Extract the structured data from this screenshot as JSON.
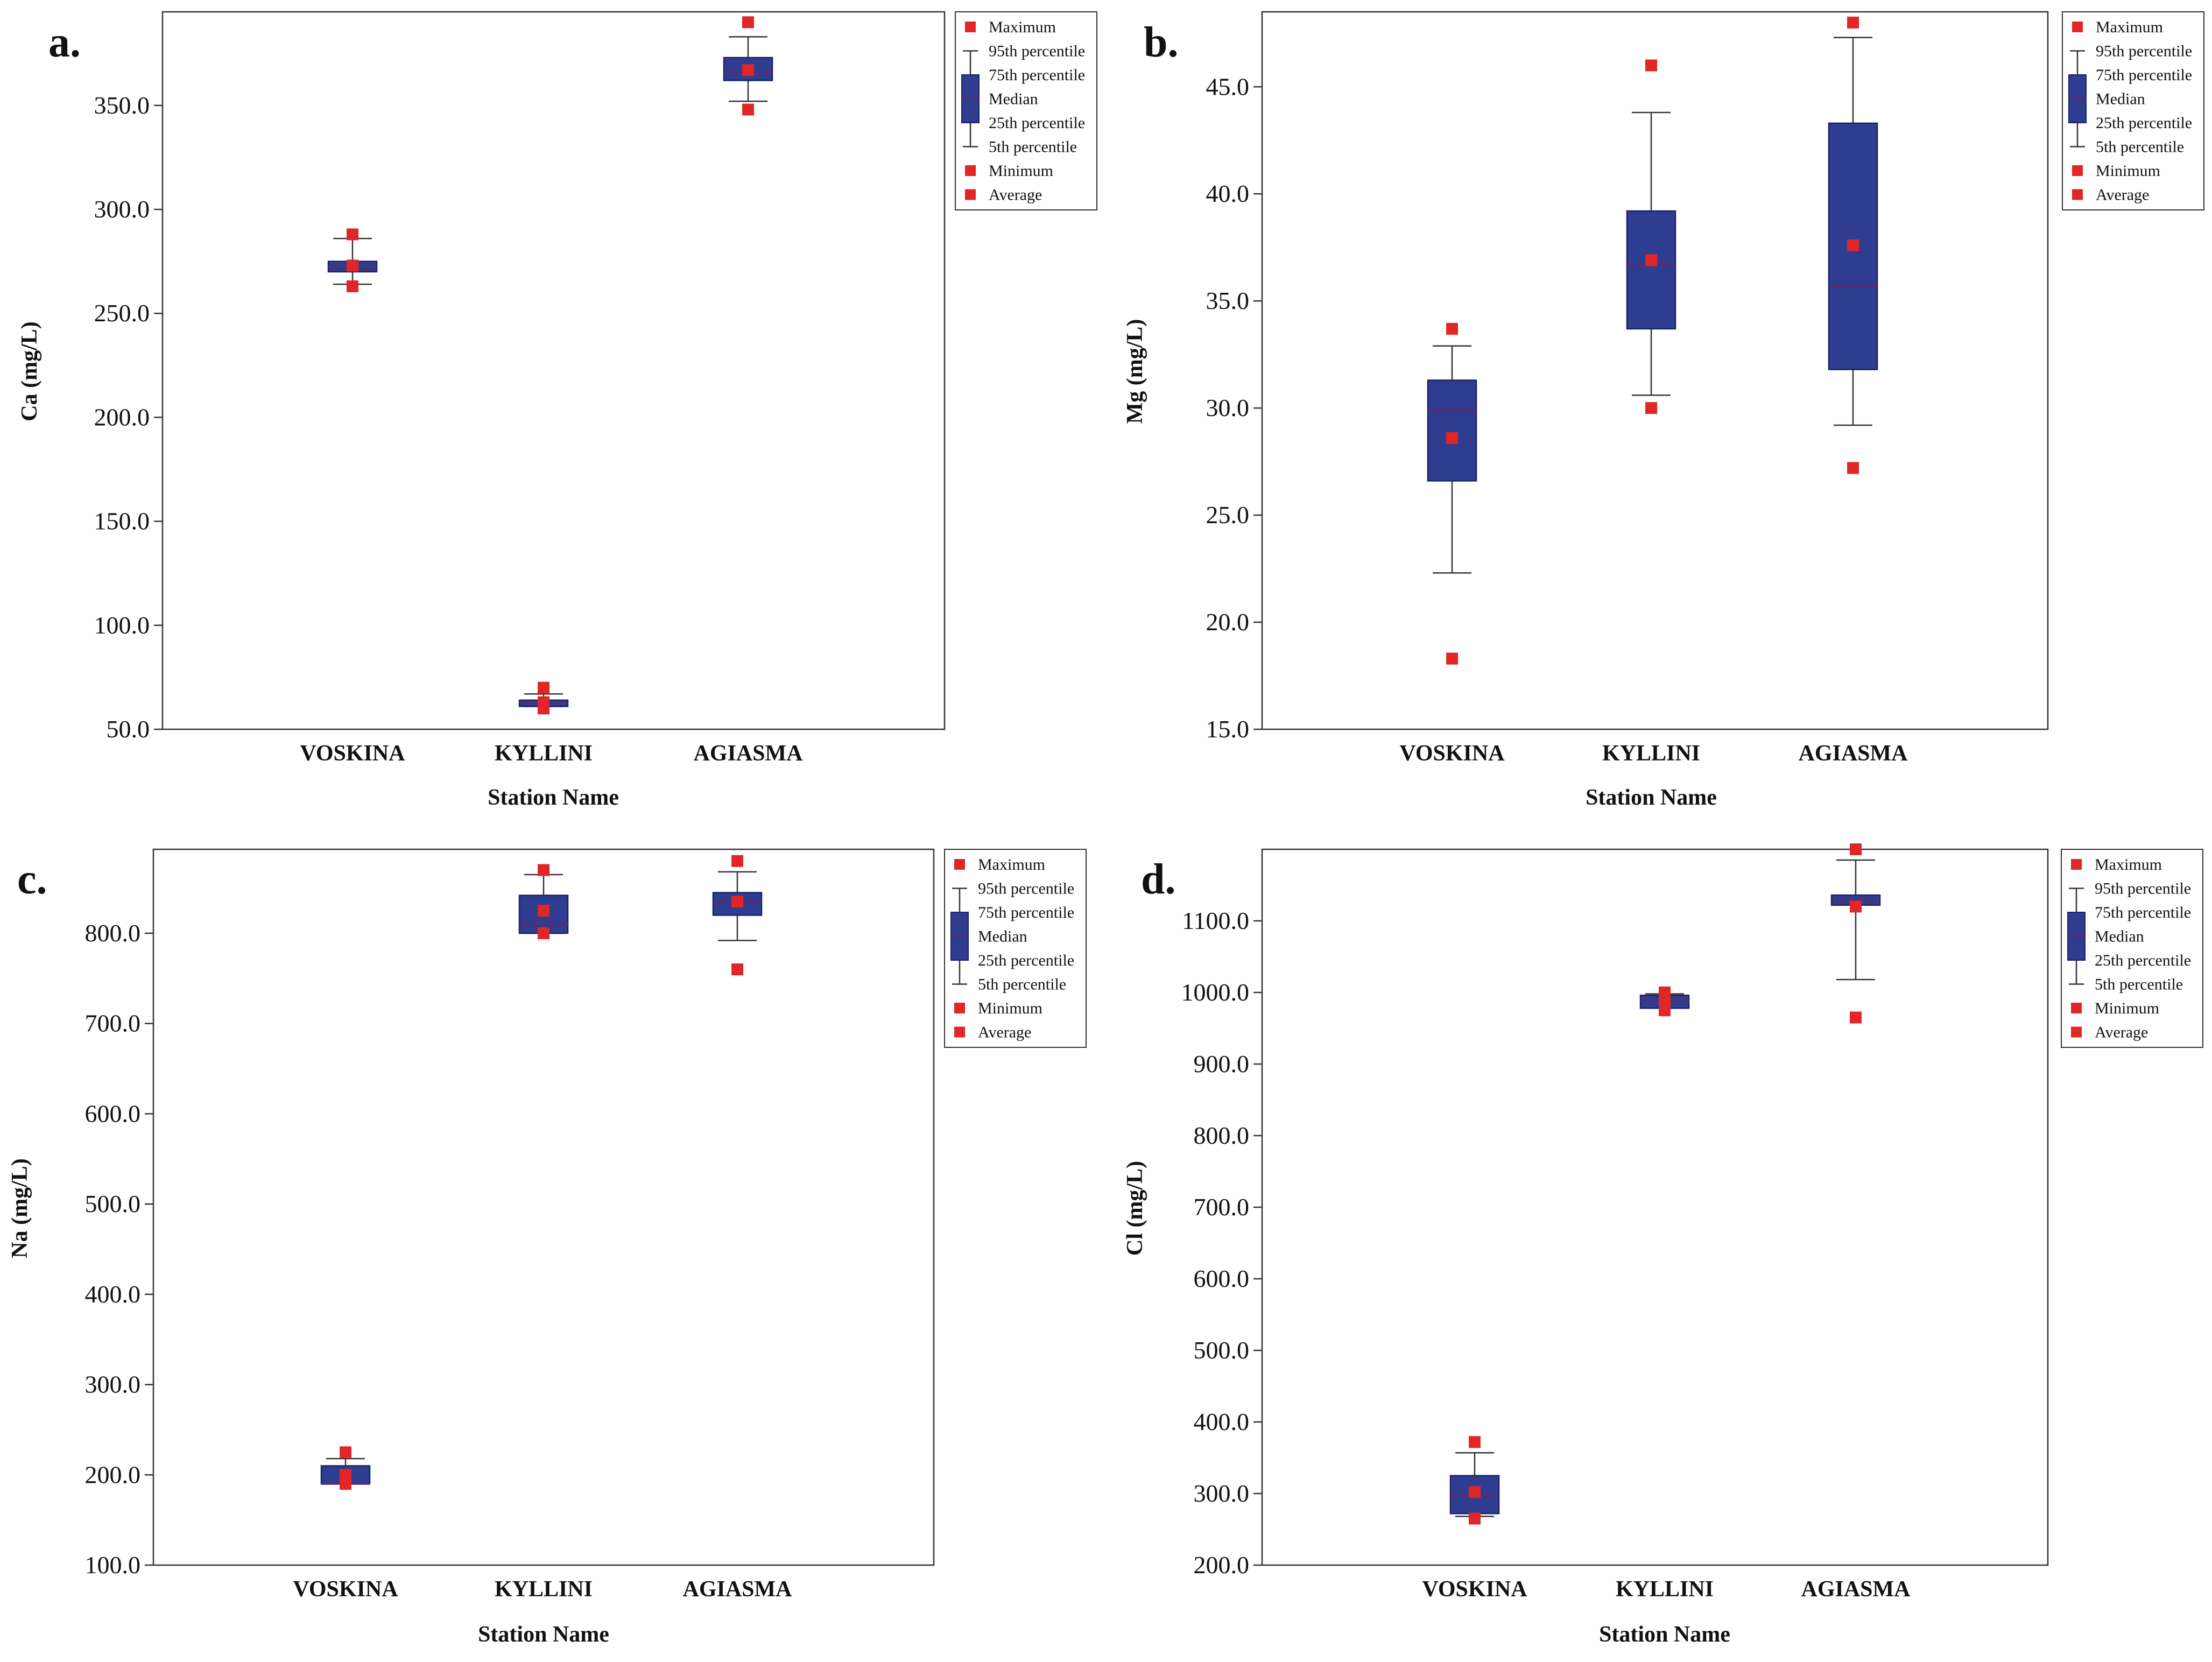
{
  "colors": {
    "box_fill": "#2e3d8f",
    "box_edge": "#1a2266",
    "point": "#e02626",
    "axis": "#333333",
    "whisker": "#333333"
  },
  "legend": {
    "items": [
      "Maximum",
      "95th percentile",
      "75th percentile",
      "Median",
      "25th percentile",
      "5th percentile",
      "Minimum",
      "Average"
    ]
  },
  "chart_data": [
    {
      "panel_label": "a.",
      "type": "box",
      "title": "",
      "xlabel": "Station Name",
      "ylabel": "Ca (mg/L)",
      "ylim": [
        50,
        395
      ],
      "yticks": [
        "50.0",
        "100.0",
        "150.0",
        "200.0",
        "250.0",
        "300.0",
        "350.0"
      ],
      "categories": [
        "VOSKINA",
        "KYLLINI",
        "AGIASMA"
      ],
      "stats": [
        {
          "min": 263,
          "p5": 264,
          "q1": 270,
          "median": 272,
          "q3": 275,
          "p95": 286,
          "max": 288,
          "mean": 273
        },
        {
          "min": 60,
          "p5": 61,
          "q1": 61,
          "median": 62.5,
          "q3": 64,
          "p95": 67,
          "max": 70,
          "mean": 63
        },
        {
          "min": 348,
          "p5": 352,
          "q1": 362,
          "median": 366,
          "q3": 373,
          "p95": 383,
          "max": 390,
          "mean": 367
        }
      ]
    },
    {
      "panel_label": "b.",
      "type": "box",
      "title": "",
      "xlabel": "Station Name",
      "ylabel": "Mg (mg/L)",
      "ylim": [
        15,
        48.5
      ],
      "yticks": [
        "15.0",
        "20.0",
        "25.0",
        "30.0",
        "35.0",
        "40.0",
        "45.0"
      ],
      "categories": [
        "VOSKINA",
        "KYLLINI",
        "AGIASMA"
      ],
      "stats": [
        {
          "min": 18.3,
          "p5": 22.3,
          "q1": 26.6,
          "median": 29.9,
          "q3": 31.3,
          "p95": 32.9,
          "max": 33.7,
          "mean": 28.6
        },
        {
          "min": 30.0,
          "p5": 30.6,
          "q1": 33.7,
          "median": 36.7,
          "q3": 39.2,
          "p95": 43.8,
          "max": 46.0,
          "mean": 36.9
        },
        {
          "min": 27.2,
          "p5": 29.2,
          "q1": 31.8,
          "median": 35.7,
          "q3": 43.3,
          "p95": 47.3,
          "max": 48.0,
          "mean": 37.6
        }
      ]
    },
    {
      "panel_label": "c.",
      "type": "box",
      "title": "",
      "xlabel": "Station Name",
      "ylabel": "Na (mg/L)",
      "ylim": [
        100,
        893
      ],
      "yticks": [
        "100.0",
        "200.0",
        "300.0",
        "400.0",
        "500.0",
        "600.0",
        "700.0",
        "800.0"
      ],
      "categories": [
        "VOSKINA",
        "KYLLINI",
        "AGIASMA"
      ],
      "stats": [
        {
          "min": 190,
          "p5": 190,
          "q1": 190,
          "median": 190,
          "q3": 210,
          "p95": 218,
          "max": 225,
          "mean": 200
        },
        {
          "min": 800,
          "p5": 800,
          "q1": 800,
          "median": 810,
          "q3": 842,
          "p95": 865,
          "max": 870,
          "mean": 825
        },
        {
          "min": 760,
          "p5": 792,
          "q1": 820,
          "median": 835,
          "q3": 845,
          "p95": 868,
          "max": 880,
          "mean": 835
        }
      ]
    },
    {
      "panel_label": "d.",
      "type": "box",
      "title": "",
      "xlabel": "Station Name",
      "ylabel": "Cl (mg/L)",
      "ylim": [
        200,
        1200
      ],
      "yticks": [
        "200.0",
        "300.0",
        "400.0",
        "500.0",
        "600.0",
        "700.0",
        "800.0",
        "900.0",
        "1000.0",
        "1100.0"
      ],
      "categories": [
        "VOSKINA",
        "KYLLINI",
        "AGIASMA"
      ],
      "stats": [
        {
          "min": 265,
          "p5": 268,
          "q1": 272,
          "median": 297,
          "q3": 325,
          "p95": 357,
          "max": 372,
          "mean": 302
        },
        {
          "min": 975,
          "p5": 978,
          "q1": 978,
          "median": 988,
          "q3": 996,
          "p95": 998,
          "max": 1000,
          "mean": 985
        },
        {
          "min": 965,
          "p5": 1018,
          "q1": 1122,
          "median": 1128,
          "q3": 1136,
          "p95": 1185,
          "max": 1200,
          "mean": 1120
        }
      ]
    }
  ]
}
